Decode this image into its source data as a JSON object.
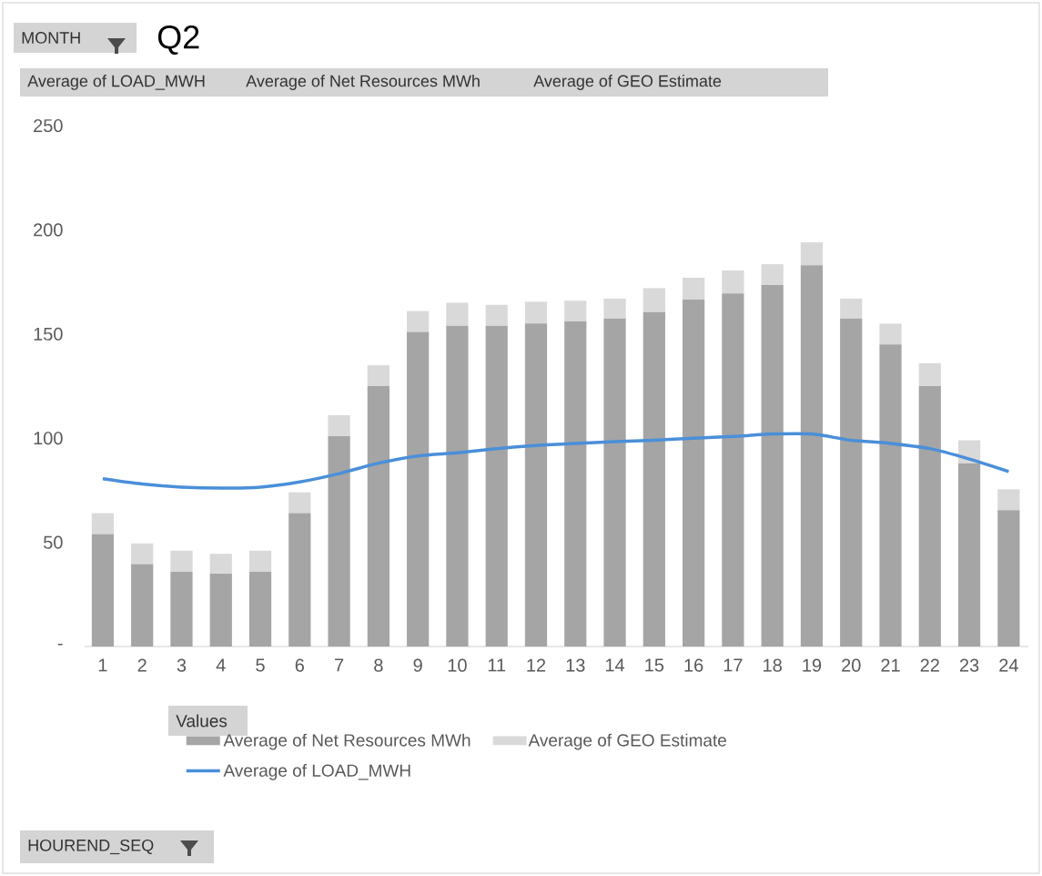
{
  "chart_data": {
    "type": "bar",
    "title": "Q2",
    "legend_title": "Values",
    "annotations": [
      "MONTH",
      "Average of LOAD_MWH",
      "Average of Net Resources MWh",
      "Average of GEO Estimate",
      "HOUREND_SEQ"
    ],
    "categories": [
      "1",
      "2",
      "3",
      "4",
      "5",
      "6",
      "7",
      "8",
      "9",
      "10",
      "11",
      "12",
      "13",
      "14",
      "15",
      "16",
      "17",
      "18",
      "19",
      "20",
      "21",
      "22",
      "23",
      "24"
    ],
    "stacked": true,
    "series": [
      {
        "name": "Average of Net Resources MWh",
        "color": "#a5a5a5",
        "values": [
          54,
          39.5,
          36,
          35,
          36,
          64,
          101,
          125,
          151,
          154,
          154,
          155,
          156,
          157.5,
          160.5,
          166.5,
          169.5,
          173.5,
          183,
          157.5,
          145,
          125,
          88,
          65.5
        ]
      },
      {
        "name": "Average of GEO Estimate",
        "color": "#d9d9d9",
        "values": [
          10,
          10,
          10,
          9.5,
          10,
          10,
          10,
          10,
          10,
          11,
          10,
          10.5,
          10,
          9.5,
          11.5,
          10.5,
          11,
          10,
          11,
          9.5,
          10,
          11,
          11,
          10
        ]
      },
      {
        "name": "Average of LOAD_MWH",
        "type": "line",
        "color": "#4a8fd9",
        "values": [
          80.5,
          78,
          76.5,
          76,
          76.5,
          79,
          83,
          88,
          91.5,
          93,
          95,
          96.5,
          97.5,
          98.3,
          99,
          100,
          100.8,
          102,
          102,
          99,
          97.5,
          95,
          90,
          84
        ]
      }
    ],
    "ylim": [
      0,
      250
    ],
    "yticks": [
      {
        "value": 0,
        "label": "-"
      },
      50,
      100,
      150,
      200,
      250
    ],
    "grid": false,
    "legend": "bottom",
    "line_style": "solid",
    "marker": "none"
  }
}
